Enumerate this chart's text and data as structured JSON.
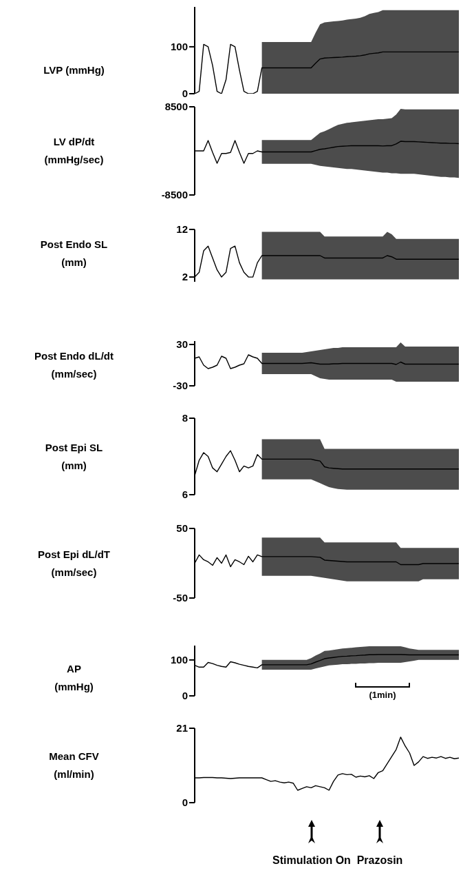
{
  "chart_data": [
    {
      "type": "line",
      "ylabel": "LVP  (mmHg)",
      "categories": [
        null,
        null,
        null,
        null,
        null,
        null,
        null,
        null,
        null,
        null,
        null,
        null,
        null,
        null,
        null,
        null,
        null,
        null,
        null,
        null,
        null,
        null,
        null,
        null,
        null,
        null,
        null,
        null,
        null,
        null,
        null,
        null,
        null,
        null,
        null,
        null,
        null,
        null,
        null,
        null,
        null,
        null,
        null,
        null,
        null,
        null,
        null,
        null,
        null,
        null,
        null,
        null,
        null,
        null,
        null,
        null,
        null,
        null,
        null,
        null
      ],
      "ylim": [
        0,
        185
      ],
      "yticks": [
        0,
        100
      ],
      "series": [
        {
          "color": "#000000",
          "values": [
            0,
            5,
            105,
            100,
            60,
            5,
            0,
            30,
            105,
            100,
            50,
            5,
            0,
            0,
            5,
            55,
            55,
            55,
            55,
            55,
            55,
            55,
            55,
            55,
            55,
            55,
            55,
            65,
            74,
            76,
            76.5,
            77,
            77.5,
            78,
            79,
            79.5,
            80,
            81,
            82.5,
            85,
            86,
            87,
            89,
            89,
            89,
            89,
            89,
            89,
            89,
            89,
            89,
            89,
            89,
            89,
            89,
            89,
            89,
            89,
            89,
            89
          ],
          "lower": [
            null,
            null,
            null,
            null,
            null,
            null,
            null,
            null,
            null,
            null,
            null,
            null,
            null,
            null,
            null,
            0,
            0,
            0,
            0,
            0,
            0,
            0,
            0,
            0,
            0,
            0,
            0,
            0,
            0,
            0,
            0,
            0,
            0,
            0,
            0,
            0,
            0,
            0,
            0,
            0,
            0,
            0,
            0,
            0,
            0,
            0,
            0,
            0,
            0,
            0,
            0,
            0,
            0,
            0,
            0,
            0,
            0,
            0,
            0,
            0
          ],
          "upper": [
            null,
            null,
            null,
            null,
            null,
            null,
            null,
            null,
            null,
            null,
            null,
            null,
            null,
            null,
            null,
            110,
            110,
            110,
            110,
            110,
            110,
            110,
            110,
            110,
            110,
            110,
            110,
            130,
            148,
            152,
            153,
            154,
            155,
            156,
            158,
            159,
            160,
            162,
            165,
            170,
            172,
            174,
            178,
            178,
            178,
            178,
            178,
            178,
            178,
            178,
            178,
            178,
            178,
            178,
            178,
            178,
            178,
            178,
            178,
            178
          ]
        }
      ]
    },
    {
      "type": "line",
      "ylabel": "LV dP/dt\n(mmHg/sec)",
      "categories": [
        null,
        null,
        null,
        null,
        null,
        null,
        null,
        null,
        null,
        null,
        null,
        null,
        null,
        null,
        null,
        null,
        null,
        null,
        null,
        null,
        null,
        null,
        null,
        null,
        null,
        null,
        null,
        null,
        null,
        null,
        null,
        null,
        null,
        null,
        null,
        null,
        null,
        null,
        null,
        null,
        null,
        null,
        null,
        null,
        null,
        null,
        null,
        null,
        null,
        null,
        null,
        null,
        null,
        null,
        null,
        null,
        null,
        null,
        null,
        null
      ],
      "ylim": [
        -8500,
        8500
      ],
      "yticks": [
        -8500,
        8500
      ],
      "series": [
        {
          "color": "#000000",
          "values": [
            0,
            0,
            0,
            2000,
            -300,
            -2400,
            -500,
            -500,
            -300,
            2000,
            -300,
            -2400,
            -500,
            -500,
            0,
            -200,
            -200,
            -200,
            -200,
            -200,
            -200,
            -200,
            -200,
            -200,
            -200,
            -200,
            -200,
            50,
            300,
            400,
            550,
            700,
            850,
            900,
            950,
            1000,
            1000,
            1000,
            1000,
            1000,
            1000,
            1000,
            950,
            1000,
            1000,
            1350,
            1850,
            1800,
            1800,
            1800,
            1750,
            1700,
            1650,
            1600,
            1550,
            1500,
            1500,
            1450,
            1450,
            1400
          ],
          "lower": [
            null,
            null,
            null,
            null,
            null,
            null,
            null,
            null,
            null,
            null,
            null,
            null,
            null,
            null,
            null,
            -2500,
            -2500,
            -2500,
            -2500,
            -2500,
            -2500,
            -2500,
            -2500,
            -2500,
            -2500,
            -2500,
            -2500,
            -2700,
            -2900,
            -3000,
            -3100,
            -3200,
            -3300,
            -3400,
            -3500,
            -3500,
            -3600,
            -3700,
            -3800,
            -3900,
            -4000,
            -4100,
            -4200,
            -4200,
            -4300,
            -4300,
            -4400,
            -4400,
            -4400,
            -4400,
            -4500,
            -4600,
            -4700,
            -4800,
            -4900,
            -5000,
            -5000,
            -5100,
            -5100,
            -5200
          ],
          "upper": [
            null,
            null,
            null,
            null,
            null,
            null,
            null,
            null,
            null,
            null,
            null,
            null,
            null,
            null,
            null,
            2100,
            2100,
            2100,
            2100,
            2100,
            2100,
            2100,
            2100,
            2100,
            2100,
            2100,
            2100,
            2800,
            3500,
            3800,
            4200,
            4600,
            5000,
            5200,
            5400,
            5500,
            5600,
            5700,
            5800,
            5900,
            6000,
            6100,
            6100,
            6200,
            6300,
            7000,
            8100,
            8000,
            8000,
            8000,
            8000,
            8000,
            8000,
            8000,
            8000,
            8000,
            8000,
            8000,
            8000,
            8000
          ]
        }
      ]
    },
    {
      "type": "line",
      "ylabel": "Post Endo SL\n(mm)",
      "categories": [
        null,
        null,
        null,
        null,
        null,
        null,
        null,
        null,
        null,
        null,
        null,
        null,
        null,
        null,
        null,
        null,
        null,
        null,
        null,
        null,
        null,
        null,
        null,
        null,
        null,
        null,
        null,
        null,
        null,
        null,
        null,
        null,
        null,
        null,
        null,
        null,
        null,
        null,
        null,
        null,
        null,
        null,
        null,
        null,
        null,
        null,
        null,
        null,
        null,
        null,
        null,
        null,
        null,
        null,
        null,
        null,
        null,
        null,
        null,
        null
      ],
      "ylim": [
        1,
        12
      ],
      "yticks": [
        2,
        12
      ],
      "series": [
        {
          "color": "#000000",
          "values": [
            2,
            3,
            7.5,
            8.5,
            6,
            3.5,
            2,
            3,
            8,
            8.5,
            5,
            3,
            2,
            2,
            5,
            6.5,
            6.5,
            6.5,
            6.5,
            6.5,
            6.5,
            6.5,
            6.5,
            6.5,
            6.5,
            6.5,
            6.5,
            6.5,
            6.5,
            6,
            6,
            6,
            6,
            6,
            6,
            6,
            6,
            6,
            6,
            6,
            6,
            6,
            6,
            6.5,
            6.25,
            5.75,
            5.75,
            5.75,
            5.75,
            5.75,
            5.75,
            5.75,
            5.75,
            5.75,
            5.75,
            5.75,
            5.75,
            5.75,
            5.75,
            5.75
          ],
          "lower": [
            null,
            null,
            null,
            null,
            null,
            null,
            null,
            null,
            null,
            null,
            null,
            null,
            null,
            null,
            null,
            1.5,
            1.5,
            1.5,
            1.5,
            1.5,
            1.5,
            1.5,
            1.5,
            1.5,
            1.5,
            1.5,
            1.5,
            1.5,
            1.5,
            1.5,
            1.5,
            1.5,
            1.5,
            1.5,
            1.5,
            1.5,
            1.5,
            1.5,
            1.5,
            1.5,
            1.5,
            1.5,
            1.5,
            1.5,
            1.5,
            1.5,
            1.5,
            1.5,
            1.5,
            1.5,
            1.5,
            1.5,
            1.5,
            1.5,
            1.5,
            1.5,
            1.5,
            1.5,
            1.5,
            1.5
          ],
          "upper": [
            null,
            null,
            null,
            null,
            null,
            null,
            null,
            null,
            null,
            null,
            null,
            null,
            null,
            null,
            null,
            11.5,
            11.5,
            11.5,
            11.5,
            11.5,
            11.5,
            11.5,
            11.5,
            11.5,
            11.5,
            11.5,
            11.5,
            11.5,
            11.5,
            10.5,
            10.5,
            10.5,
            10.5,
            10.5,
            10.5,
            10.5,
            10.5,
            10.5,
            10.5,
            10.5,
            10.5,
            10.5,
            10.5,
            11.5,
            11,
            10,
            10,
            10,
            10,
            10,
            10,
            10,
            10,
            10,
            10,
            10,
            10,
            10,
            10,
            10
          ]
        }
      ]
    },
    {
      "type": "line",
      "ylabel": "Post Endo dL/dt\n(mm/sec)",
      "categories": [
        null,
        null,
        null,
        null,
        null,
        null,
        null,
        null,
        null,
        null,
        null,
        null,
        null,
        null,
        null,
        null,
        null,
        null,
        null,
        null,
        null,
        null,
        null,
        null,
        null,
        null,
        null,
        null,
        null,
        null,
        null,
        null,
        null,
        null,
        null,
        null,
        null,
        null,
        null,
        null,
        null,
        null,
        null,
        null,
        null,
        null,
        null,
        null,
        null,
        null,
        null,
        null,
        null,
        null,
        null,
        null,
        null,
        null,
        null,
        null
      ],
      "ylim": [
        -30,
        35
      ],
      "yticks": [
        -30,
        30
      ],
      "series": [
        {
          "color": "#000000",
          "values": [
            10,
            12,
            0,
            -5,
            -3,
            0,
            13,
            10,
            -5,
            -3,
            0,
            2,
            15,
            12,
            10,
            2.5,
            2.5,
            2.5,
            2.5,
            2.5,
            2.5,
            2.5,
            2.5,
            2.5,
            2.5,
            3,
            3.5,
            2.5,
            1.5,
            1.5,
            1.5,
            2,
            2,
            2.5,
            2.5,
            2.5,
            2.5,
            2.5,
            2.5,
            2.5,
            2.5,
            2.5,
            2.5,
            2.5,
            2.5,
            1,
            4.5,
            1.5,
            1.5,
            1.5,
            1.5,
            1.5,
            1.5,
            1.5,
            1.5,
            1.5,
            1.5,
            1.5,
            1.5,
            1.5
          ],
          "lower": [
            null,
            null,
            null,
            null,
            null,
            null,
            null,
            null,
            null,
            null,
            null,
            null,
            null,
            null,
            null,
            -13,
            -13,
            -13,
            -13,
            -13,
            -13,
            -13,
            -13,
            -13,
            -13,
            -13,
            -13,
            -16,
            -19,
            -20,
            -21,
            -21,
            -21,
            -21,
            -21,
            -21,
            -21,
            -21,
            -21,
            -21,
            -21,
            -21,
            -21,
            -21,
            -21,
            -24,
            -24,
            -24,
            -24,
            -24,
            -24,
            -24,
            -24,
            -24,
            -24,
            -24,
            -24,
            -24,
            -24,
            -24
          ],
          "upper": [
            null,
            null,
            null,
            null,
            null,
            null,
            null,
            null,
            null,
            null,
            null,
            null,
            null,
            null,
            null,
            18,
            18,
            18,
            18,
            18,
            18,
            18,
            18,
            18,
            18,
            19,
            20,
            21,
            22,
            23,
            24,
            25,
            25,
            26,
            26,
            26,
            26,
            26,
            26,
            26,
            26,
            26,
            26,
            26,
            26,
            26,
            33,
            27,
            27,
            27,
            27,
            27,
            27,
            27,
            27,
            27,
            27,
            27,
            27,
            27
          ]
        }
      ]
    },
    {
      "type": "line",
      "ylabel": "Post Epi SL\n(mm)",
      "categories": [
        null,
        null,
        null,
        null,
        null,
        null,
        null,
        null,
        null,
        null,
        null,
        null,
        null,
        null,
        null,
        null,
        null,
        null,
        null,
        null,
        null,
        null,
        null,
        null,
        null,
        null,
        null,
        null,
        null,
        null,
        null,
        null,
        null,
        null,
        null,
        null,
        null,
        null,
        null,
        null,
        null,
        null,
        null,
        null,
        null,
        null,
        null,
        null,
        null,
        null,
        null,
        null,
        null,
        null,
        null,
        null,
        null,
        null,
        null,
        null
      ],
      "ylim": [
        6,
        8
      ],
      "yticks": [
        6,
        8
      ],
      "series": [
        {
          "color": "#000000",
          "values": [
            6.5,
            6.9,
            7.1,
            7.0,
            6.7,
            6.6,
            6.8,
            7.0,
            7.15,
            6.9,
            6.6,
            6.75,
            6.7,
            6.75,
            7.05,
            6.93,
            6.93,
            6.93,
            6.93,
            6.93,
            6.93,
            6.93,
            6.93,
            6.93,
            6.93,
            6.93,
            6.93,
            6.9,
            6.88,
            6.73,
            6.7,
            6.69,
            6.68,
            6.67,
            6.67,
            6.67,
            6.67,
            6.67,
            6.67,
            6.67,
            6.67,
            6.67,
            6.67,
            6.67,
            6.67,
            6.67,
            6.67,
            6.67,
            6.67,
            6.67,
            6.67,
            6.67,
            6.67,
            6.67,
            6.67,
            6.67,
            6.67,
            6.67,
            6.67,
            6.67
          ],
          "lower": [
            null,
            null,
            null,
            null,
            null,
            null,
            null,
            null,
            null,
            null,
            null,
            null,
            null,
            null,
            null,
            6.4,
            6.4,
            6.4,
            6.4,
            6.4,
            6.4,
            6.4,
            6.4,
            6.4,
            6.4,
            6.4,
            6.4,
            6.35,
            6.3,
            6.25,
            6.2,
            6.17,
            6.15,
            6.14,
            6.13,
            6.13,
            6.13,
            6.13,
            6.13,
            6.13,
            6.13,
            6.13,
            6.13,
            6.13,
            6.13,
            6.13,
            6.13,
            6.13,
            6.13,
            6.13,
            6.13,
            6.13,
            6.13,
            6.13,
            6.13,
            6.13,
            6.13,
            6.13,
            6.13,
            6.13
          ],
          "upper": [
            null,
            null,
            null,
            null,
            null,
            null,
            null,
            null,
            null,
            null,
            null,
            null,
            null,
            null,
            null,
            7.45,
            7.45,
            7.45,
            7.45,
            7.45,
            7.45,
            7.45,
            7.45,
            7.45,
            7.45,
            7.45,
            7.45,
            7.45,
            7.45,
            7.2,
            7.2,
            7.2,
            7.2,
            7.2,
            7.2,
            7.2,
            7.2,
            7.2,
            7.2,
            7.2,
            7.2,
            7.2,
            7.2,
            7.2,
            7.2,
            7.2,
            7.2,
            7.2,
            7.2,
            7.2,
            7.2,
            7.2,
            7.2,
            7.2,
            7.2,
            7.2,
            7.2,
            7.2,
            7.2,
            7.2
          ]
        }
      ]
    },
    {
      "type": "line",
      "ylabel": "Post Epi dL/dT\n(mm/sec)",
      "categories": [
        null,
        null,
        null,
        null,
        null,
        null,
        null,
        null,
        null,
        null,
        null,
        null,
        null,
        null,
        null,
        null,
        null,
        null,
        null,
        null,
        null,
        null,
        null,
        null,
        null,
        null,
        null,
        null,
        null,
        null,
        null,
        null,
        null,
        null,
        null,
        null,
        null,
        null,
        null,
        null,
        null,
        null,
        null,
        null,
        null,
        null,
        null,
        null,
        null,
        null,
        null,
        null,
        null,
        null,
        null,
        null,
        null,
        null,
        null,
        null
      ],
      "ylim": [
        -50,
        50
      ],
      "yticks": [
        -50,
        50
      ],
      "series": [
        {
          "color": "#000000",
          "values": [
            0,
            12,
            5,
            2,
            -3,
            8,
            0,
            12,
            -5,
            5,
            2,
            -2,
            10,
            2,
            12,
            9.5,
            9.5,
            9.5,
            9.5,
            9.5,
            9.5,
            9.5,
            9.5,
            9.5,
            9.5,
            9.5,
            9.5,
            9,
            8.5,
            4.5,
            4,
            3.5,
            3,
            2.5,
            2,
            2,
            2,
            2,
            2,
            2,
            2,
            2,
            2,
            2,
            2,
            2,
            -2,
            -2,
            -2,
            -2,
            -2,
            -0.5,
            -0.5,
            -0.5,
            -0.5,
            -0.5,
            -0.5,
            -0.5,
            -0.5,
            -0.5
          ],
          "lower": [
            null,
            null,
            null,
            null,
            null,
            null,
            null,
            null,
            null,
            null,
            null,
            null,
            null,
            null,
            null,
            -18,
            -18,
            -18,
            -18,
            -18,
            -18,
            -18,
            -18,
            -18,
            -18,
            -18,
            -18,
            -19,
            -20,
            -21,
            -22,
            -23,
            -24,
            -25,
            -26,
            -26,
            -26,
            -26,
            -26,
            -26,
            -26,
            -26,
            -26,
            -26,
            -26,
            -26,
            -26,
            -26,
            -26,
            -26,
            -26,
            -23,
            -23,
            -23,
            -23,
            -23,
            -23,
            -23,
            -23,
            -23
          ],
          "upper": [
            null,
            null,
            null,
            null,
            null,
            null,
            null,
            null,
            null,
            null,
            null,
            null,
            null,
            null,
            null,
            37,
            37,
            37,
            37,
            37,
            37,
            37,
            37,
            37,
            37,
            37,
            37,
            37,
            37,
            30,
            30,
            30,
            30,
            30,
            30,
            30,
            30,
            30,
            30,
            30,
            30,
            30,
            30,
            30,
            30,
            30,
            22,
            22,
            22,
            22,
            22,
            22,
            22,
            22,
            22,
            22,
            22,
            22,
            22,
            22
          ]
        }
      ]
    },
    {
      "type": "line",
      "ylabel": "AP\n(mmHg)",
      "annotations": [
        "(1min)"
      ],
      "categories": [
        null,
        null,
        null,
        null,
        null,
        null,
        null,
        null,
        null,
        null,
        null,
        null,
        null,
        null,
        null,
        null,
        null,
        null,
        null,
        null,
        null,
        null,
        null,
        null,
        null,
        null,
        null,
        null,
        null,
        null,
        null,
        null,
        null,
        null,
        null,
        null,
        null,
        null,
        null,
        null,
        null,
        null,
        null,
        null,
        null,
        null,
        null,
        null,
        null,
        null,
        null,
        null,
        null,
        null,
        null,
        null,
        null,
        null,
        null,
        null
      ],
      "ylim": [
        0,
        140
      ],
      "yticks": [
        0,
        100
      ],
      "series": [
        {
          "color": "#000000",
          "values": [
            85,
            80,
            80,
            93,
            90,
            85,
            82,
            80,
            95,
            92,
            88,
            85,
            82,
            80,
            78,
            86.5,
            86.5,
            86.5,
            86.5,
            86.5,
            86.5,
            86.5,
            86.5,
            86.5,
            86.5,
            86.5,
            89,
            94,
            98.5,
            103.5,
            105.5,
            107,
            108.5,
            110,
            110.5,
            111.5,
            112,
            113,
            113.5,
            114.5,
            114.5,
            115,
            115,
            115,
            115,
            115,
            115,
            114.5,
            114,
            114,
            114,
            114,
            114,
            114,
            114,
            114,
            114,
            114,
            114,
            114
          ],
          "lower": [
            null,
            null,
            null,
            null,
            null,
            null,
            null,
            null,
            null,
            null,
            null,
            null,
            null,
            null,
            null,
            73,
            73,
            73,
            73,
            73,
            73,
            73,
            73,
            73,
            73,
            73,
            73,
            76,
            79,
            82,
            85,
            86,
            87,
            88,
            88,
            89,
            89,
            90,
            90,
            91,
            91,
            92,
            92,
            92,
            92,
            92,
            92,
            94,
            96,
            98,
            100,
            100,
            100,
            100,
            100,
            100,
            100,
            100,
            100,
            100
          ],
          "upper": [
            null,
            null,
            null,
            null,
            null,
            null,
            null,
            null,
            null,
            null,
            null,
            null,
            null,
            null,
            null,
            100,
            100,
            100,
            100,
            100,
            100,
            100,
            100,
            100,
            100,
            100,
            105,
            112,
            118,
            125,
            126,
            128,
            130,
            132,
            133,
            134,
            135,
            136,
            137,
            138,
            138,
            138,
            138,
            138,
            138,
            138,
            138,
            135,
            132,
            130,
            128,
            128,
            128,
            128,
            128,
            128,
            128,
            128,
            128,
            128
          ]
        }
      ]
    },
    {
      "type": "line",
      "ylabel": "Mean CFV\n(ml/min)",
      "annotations": [
        "Stimulation On",
        "Prazosin"
      ],
      "categories": [
        null,
        null,
        null,
        null,
        null,
        null,
        null,
        null,
        null,
        null,
        null,
        null,
        null,
        null,
        null,
        null,
        null,
        null,
        null,
        null,
        null,
        null,
        null,
        null,
        null,
        null,
        null,
        null,
        null,
        null,
        null,
        null,
        null,
        null,
        null,
        null,
        null,
        null,
        null,
        null,
        null,
        null,
        null,
        null,
        null,
        null,
        null,
        null,
        null,
        null,
        null,
        null,
        null,
        null,
        null,
        null,
        null,
        null,
        null,
        null
      ],
      "ylim": [
        0,
        21
      ],
      "yticks": [
        0,
        21
      ],
      "series": [
        {
          "color": "#000000",
          "values": [
            7.0,
            7.0,
            7.1,
            7.1,
            7.1,
            7.0,
            7.0,
            6.9,
            6.8,
            6.9,
            7.0,
            7.0,
            7.0,
            7.0,
            7.0,
            7.0,
            6.5,
            6.0,
            6.2,
            5.8,
            5.6,
            5.8,
            5.5,
            3.5,
            4.0,
            4.5,
            4.2,
            4.8,
            4.5,
            4.2,
            3.5,
            6.0,
            7.8,
            8.2,
            7.9,
            8.0,
            7.2,
            7.5,
            7.3,
            7.6,
            6.8,
            8.5,
            9.0,
            11.0,
            13.0,
            15.0,
            18.5,
            16.0,
            14.0,
            10.5,
            11.5,
            13.0,
            12.5,
            12.8,
            12.6,
            13.0,
            12.5,
            12.8,
            12.4,
            12.6
          ]
        }
      ]
    }
  ]
}
